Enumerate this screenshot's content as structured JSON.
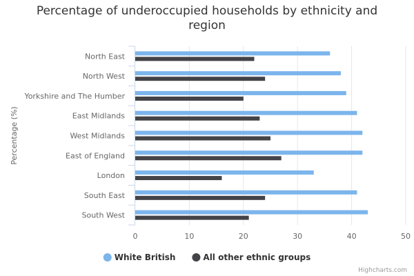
{
  "chart_data": {
    "type": "bar",
    "orientation": "horizontal",
    "title_lines": [
      "Percentage of underoccupied households by ethnicity and",
      "region"
    ],
    "ylabel": "Percentage (%)",
    "xlabel": "",
    "categories": [
      "North East",
      "North West",
      "Yorkshire and The Humber",
      "East Midlands",
      "West Midlands",
      "East of England",
      "London",
      "South East",
      "South West"
    ],
    "series": [
      {
        "name": "White British",
        "color": "#7cb5ec",
        "values": [
          36,
          38,
          39,
          41,
          42,
          42,
          33,
          41,
          43
        ]
      },
      {
        "name": "All other ethnic groups",
        "color": "#434348",
        "values": [
          22,
          24,
          20,
          23,
          25,
          27,
          16,
          24,
          21
        ]
      }
    ],
    "xlim": [
      0,
      50
    ],
    "ticks": [
      0,
      10,
      20,
      30,
      40,
      50
    ],
    "grid": true,
    "legend_position": "bottom-center"
  },
  "credits": "Highcharts.com"
}
